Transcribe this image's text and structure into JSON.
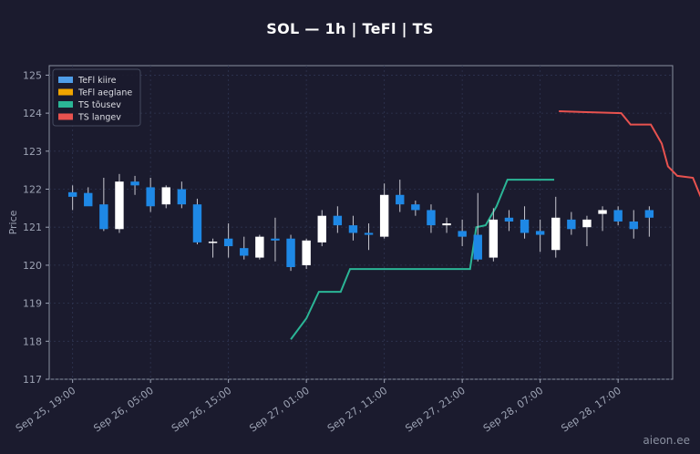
{
  "watermark": "aieon.ee",
  "chart_data": {
    "type": "candlestick",
    "title": "SOL — 1h  |  TeFl  |  TS",
    "xlabel": "",
    "ylabel": "Price",
    "ylim": [
      117,
      125.25
    ],
    "xlim": [
      -1.5,
      38.5
    ],
    "yticks": [
      117,
      118,
      119,
      120,
      121,
      122,
      123,
      124,
      125
    ],
    "xticks": [
      {
        "i": 0,
        "label": "Sep 25, 19:00"
      },
      {
        "i": 5,
        "label": "Sep 26, 05:00"
      },
      {
        "i": 10,
        "label": "Sep 26, 15:00"
      },
      {
        "i": 15,
        "label": "Sep 27, 01:00"
      },
      {
        "i": 20,
        "label": "Sep 27, 11:00"
      },
      {
        "i": 25,
        "label": "Sep 27, 21:00"
      },
      {
        "i": 30,
        "label": "Sep 28, 07:00"
      },
      {
        "i": 35,
        "label": "Sep 28, 17:00"
      }
    ],
    "grid": true,
    "legend_position": "top-left",
    "colors": {
      "up": "#ffffff",
      "down": "#1e88e5",
      "wick": "#c8c8d0",
      "grid": "#2e3450",
      "axis": "#9da3b4"
    },
    "candles": [
      {
        "o": 121.92,
        "h": 122.1,
        "l": 121.45,
        "c": 121.8
      },
      {
        "o": 121.9,
        "h": 122.05,
        "l": 121.6,
        "c": 121.55
      },
      {
        "o": 121.6,
        "h": 122.3,
        "l": 120.9,
        "c": 120.95
      },
      {
        "o": 120.95,
        "h": 122.4,
        "l": 120.85,
        "c": 122.2
      },
      {
        "o": 122.2,
        "h": 122.35,
        "l": 121.85,
        "c": 122.1
      },
      {
        "o": 122.05,
        "h": 122.3,
        "l": 121.4,
        "c": 121.55
      },
      {
        "o": 121.6,
        "h": 122.1,
        "l": 121.5,
        "c": 122.05
      },
      {
        "o": 122.0,
        "h": 122.2,
        "l": 121.5,
        "c": 121.6
      },
      {
        "o": 121.6,
        "h": 121.75,
        "l": 120.55,
        "c": 120.6
      },
      {
        "o": 120.6,
        "h": 120.7,
        "l": 120.2,
        "c": 120.62
      },
      {
        "o": 120.7,
        "h": 121.1,
        "l": 120.2,
        "c": 120.5
      },
      {
        "o": 120.45,
        "h": 120.75,
        "l": 120.15,
        "c": 120.25
      },
      {
        "o": 120.2,
        "h": 120.8,
        "l": 120.15,
        "c": 120.75
      },
      {
        "o": 120.7,
        "h": 121.25,
        "l": 120.1,
        "c": 120.65
      },
      {
        "o": 120.7,
        "h": 120.8,
        "l": 119.85,
        "c": 119.95
      },
      {
        "o": 120.0,
        "h": 120.7,
        "l": 119.9,
        "c": 120.65
      },
      {
        "o": 120.6,
        "h": 121.45,
        "l": 120.5,
        "c": 121.3
      },
      {
        "o": 121.3,
        "h": 121.55,
        "l": 120.85,
        "c": 121.05
      },
      {
        "o": 121.05,
        "h": 121.3,
        "l": 120.65,
        "c": 120.85
      },
      {
        "o": 120.85,
        "h": 121.1,
        "l": 120.4,
        "c": 120.8
      },
      {
        "o": 120.75,
        "h": 122.15,
        "l": 120.7,
        "c": 121.85
      },
      {
        "o": 121.85,
        "h": 122.25,
        "l": 121.4,
        "c": 121.6
      },
      {
        "o": 121.6,
        "h": 121.7,
        "l": 121.3,
        "c": 121.45
      },
      {
        "o": 121.45,
        "h": 121.6,
        "l": 120.85,
        "c": 121.05
      },
      {
        "o": 121.05,
        "h": 121.25,
        "l": 120.85,
        "c": 121.1
      },
      {
        "o": 120.9,
        "h": 121.2,
        "l": 120.5,
        "c": 120.75
      },
      {
        "o": 120.8,
        "h": 121.9,
        "l": 120.1,
        "c": 120.15
      },
      {
        "o": 120.2,
        "h": 121.5,
        "l": 120.1,
        "c": 121.2
      },
      {
        "o": 121.25,
        "h": 121.45,
        "l": 120.9,
        "c": 121.15
      },
      {
        "o": 121.2,
        "h": 121.55,
        "l": 120.7,
        "c": 120.85
      },
      {
        "o": 120.9,
        "h": 121.2,
        "l": 120.35,
        "c": 120.8
      },
      {
        "o": 120.4,
        "h": 121.8,
        "l": 120.2,
        "c": 121.25
      },
      {
        "o": 121.2,
        "h": 121.4,
        "l": 120.8,
        "c": 120.95
      },
      {
        "o": 121.0,
        "h": 121.3,
        "l": 120.5,
        "c": 121.2
      },
      {
        "o": 121.35,
        "h": 121.55,
        "l": 120.9,
        "c": 121.45
      },
      {
        "o": 121.45,
        "h": 121.55,
        "l": 121.05,
        "c": 121.15
      },
      {
        "o": 121.15,
        "h": 121.45,
        "l": 120.7,
        "c": 120.95
      },
      {
        "o": 121.45,
        "h": 121.55,
        "l": 120.75,
        "c": 121.25
      }
    ],
    "series": [
      {
        "name": "TeFl kiire",
        "type": "line",
        "color": "#4f9de8"
      },
      {
        "name": "TeFl aeglane",
        "type": "line",
        "color": "#f0a500"
      },
      {
        "name": "TS tõusev",
        "type": "line",
        "color": "#2bb596"
      },
      {
        "name": "TS langev",
        "type": "line",
        "color": "#e8524f"
      }
    ]
  }
}
